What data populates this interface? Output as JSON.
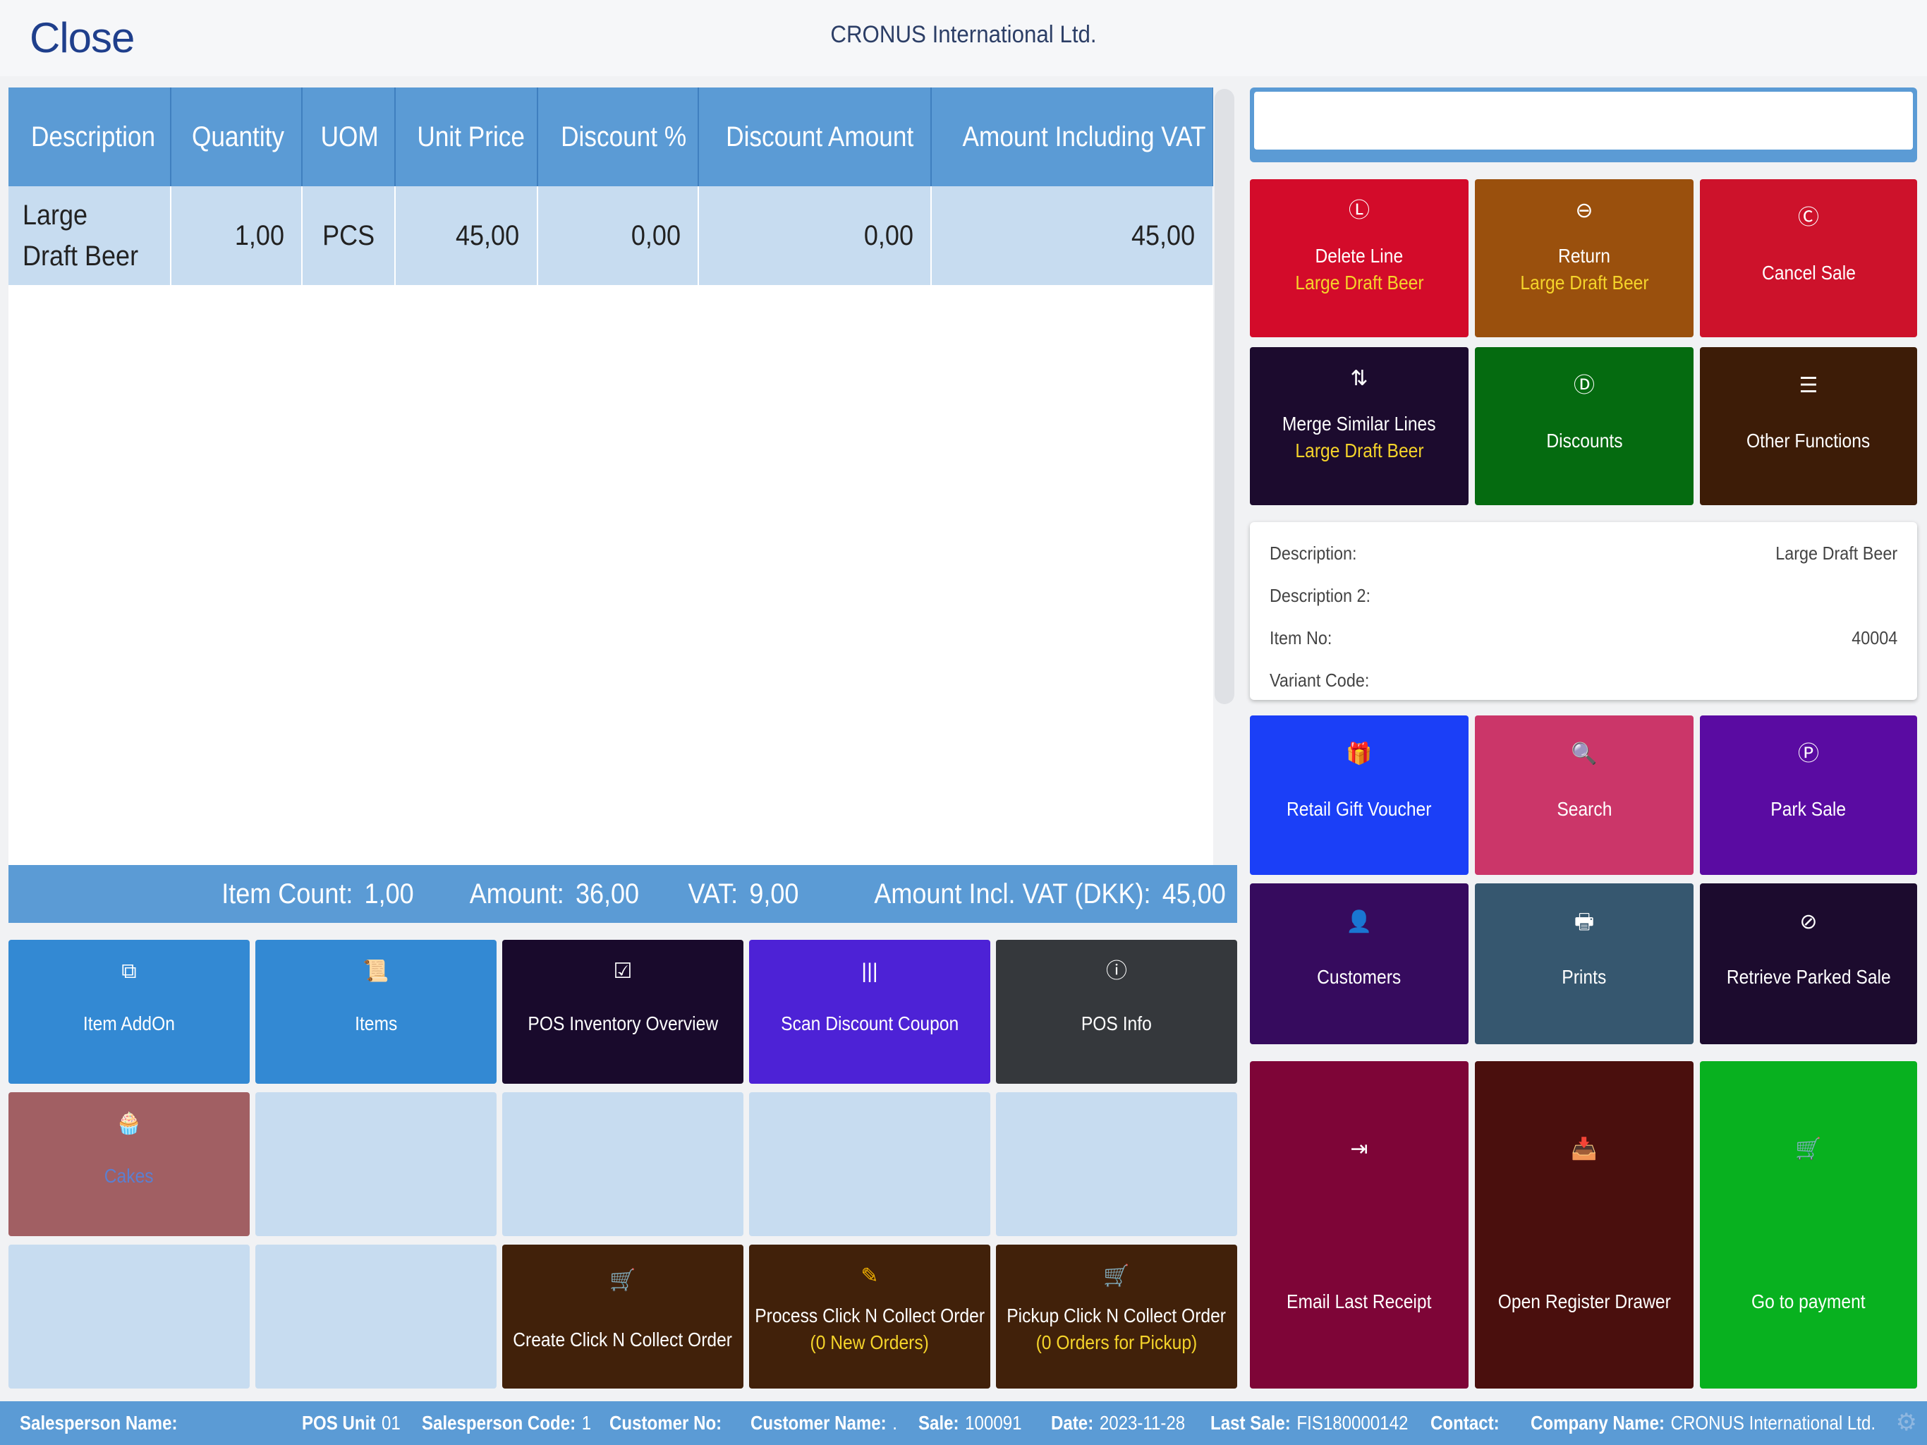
{
  "header": {
    "close_label": "Close",
    "company": "CRONUS International Ltd."
  },
  "grid": {
    "columns": [
      "Description",
      "Quantity",
      "UOM",
      "Unit Price",
      "Discount %",
      "Discount Amount",
      "Amount Including VAT"
    ],
    "rows": [
      {
        "description": "Large Draft Beer",
        "quantity": "1,00",
        "uom": "PCS",
        "unit_price": "45,00",
        "discount_pct": "0,00",
        "discount_amount": "0,00",
        "amount_incl_vat": "45,00"
      }
    ]
  },
  "totals": {
    "item_count_label": "Item Count:",
    "item_count": "1,00",
    "amount_label": "Amount:",
    "amount": "36,00",
    "vat_label": "VAT:",
    "vat": "9,00",
    "amount_incl_vat_label": "Amount Incl. VAT (DKK):",
    "amount_incl_vat": "45,00"
  },
  "left_buttons": {
    "item_addon": {
      "label": "Item AddOn",
      "icon": "copy-icon",
      "color": "#3389d3"
    },
    "items": {
      "label": "Items",
      "icon": "scroll-icon",
      "color": "#3389d3"
    },
    "pos_inventory": {
      "label": "POS Inventory Overview",
      "icon": "check-square-icon",
      "color": "#190a2c"
    },
    "scan_coupon": {
      "label": "Scan Discount Coupon",
      "icon": "barcode-icon",
      "color": "#4d22d6"
    },
    "pos_info": {
      "label": "POS Info",
      "icon": "info-icon",
      "color": "#35383c"
    },
    "cakes": {
      "label": "Cakes",
      "icon": "cupcake-icon",
      "color": "#a15f63"
    },
    "create_cnc": {
      "label": "Create Click N Collect Order",
      "icon": "cart-icon",
      "color": "#41210a"
    },
    "process_cnc": {
      "label": "Process Click N Collect Order",
      "sub": "(0 New Orders)",
      "icon": "edit-icon",
      "color": "#41210a"
    },
    "pickup_cnc": {
      "label": "Pickup Click N Collect Order",
      "sub": "(0 Orders for Pickup)",
      "icon": "cart-icon",
      "color": "#41210a"
    }
  },
  "right_buttons": {
    "delete_line": {
      "label": "Delete Line",
      "sub": "Large Draft Beer",
      "icon": "l-circle-icon",
      "color": "#d30b2a"
    },
    "return": {
      "label": "Return",
      "sub": "Large Draft Beer",
      "icon": "minus-circle-icon",
      "color": "#9a500d"
    },
    "cancel_sale": {
      "label": "Cancel Sale",
      "icon": "c-circle-icon",
      "color": "#cd122b"
    },
    "merge_lines": {
      "label": "Merge Similar Lines",
      "sub": "Large Draft Beer",
      "icon": "sort-list-icon",
      "color": "#1c0b2e"
    },
    "discounts": {
      "label": "Discounts",
      "icon": "d-circle-icon",
      "color": "#056b10"
    },
    "other_functions": {
      "label": "Other Functions",
      "icon": "menu-icon",
      "color": "#3d1c07"
    },
    "gift_voucher": {
      "label": "Retail Gift Voucher",
      "icon": "gift-icon",
      "color": "#1b3ff7"
    },
    "search": {
      "label": "Search",
      "icon": "search-icon",
      "color": "#cb3669"
    },
    "park_sale": {
      "label": "Park Sale",
      "icon": "p-circle-icon",
      "color": "#5a0ba2"
    },
    "customers": {
      "label": "Customers",
      "icon": "user-cog-icon",
      "color": "#360b5e"
    },
    "prints": {
      "label": "Prints",
      "icon": "printer-icon",
      "color": "#36576f"
    },
    "retrieve_parked": {
      "label": "Retrieve Parked Sale",
      "icon": "forbid-circle-icon",
      "color": "#1c0b2e"
    },
    "email_receipt": {
      "label": "Email Last Receipt",
      "icon": "sign-out-icon",
      "color": "#7e0537"
    },
    "open_drawer": {
      "label": "Open Register Drawer",
      "icon": "inbox-icon",
      "color": "#4a0f0d"
    },
    "go_payment": {
      "label": "Go to payment",
      "icon": "cart-icon",
      "color": "#08b11f"
    }
  },
  "item_info": {
    "description_label": "Description:",
    "description": "Large Draft Beer",
    "description2_label": "Description 2:",
    "description2": "",
    "item_no_label": "Item No:",
    "item_no": "40004",
    "variant_label": "Variant Code:",
    "variant": ""
  },
  "status_bar": {
    "salesperson_name_label": "Salesperson Name:",
    "salesperson_name": "",
    "pos_unit_label": "POS Unit",
    "pos_unit": "01",
    "salesperson_code_label": "Salesperson Code:",
    "salesperson_code": "1",
    "customer_no_label": "Customer No:",
    "customer_no": "",
    "customer_name_label": "Customer Name:",
    "customer_name": ".",
    "sale_label": "Sale:",
    "sale": "100091",
    "date_label": "Date:",
    "date": "2023-11-28",
    "last_sale_label": "Last Sale:",
    "last_sale": "FIS180000142",
    "contact_label": "Contact:",
    "contact": "",
    "company_label": "Company Name:",
    "company": "CRONUS International Ltd."
  }
}
